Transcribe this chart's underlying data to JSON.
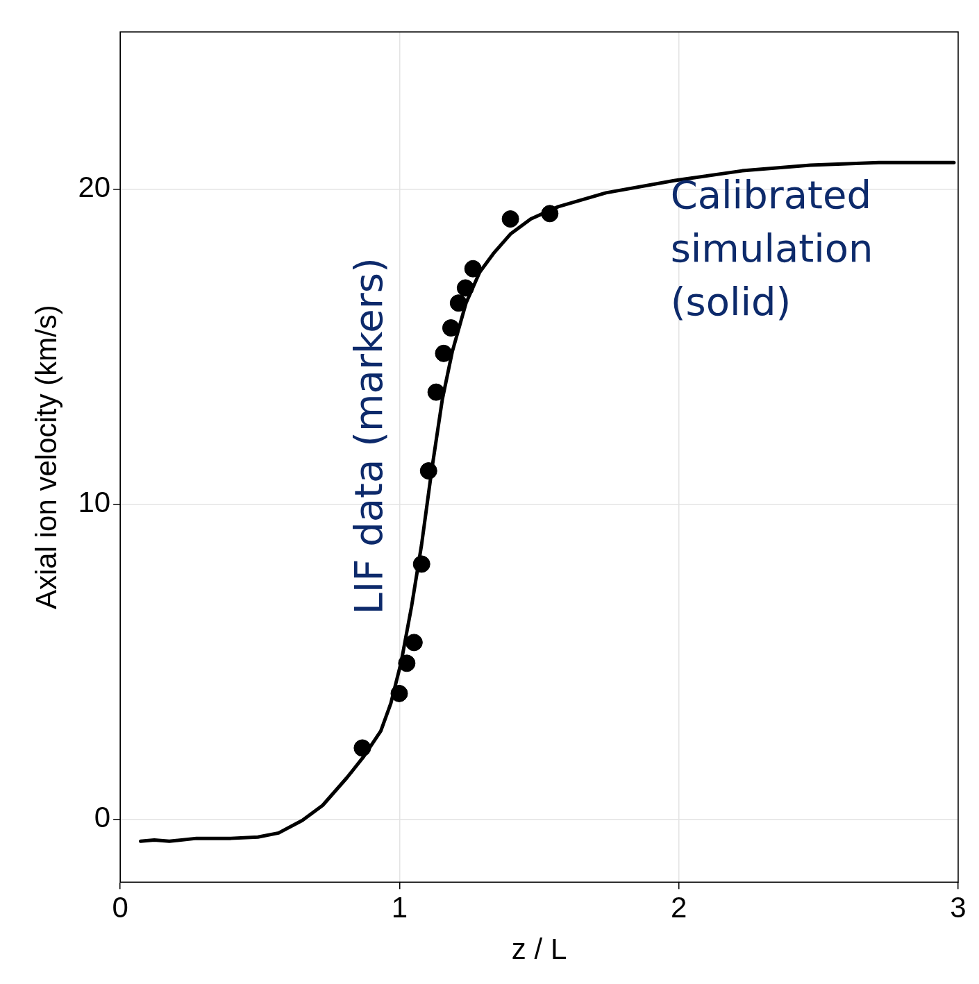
{
  "chart_data": {
    "type": "line",
    "xlabel": "z / L",
    "ylabel": "Axial ion velocity (km/s)",
    "xlim": [
      0,
      3
    ],
    "xticks": [
      0,
      1,
      2,
      3
    ],
    "ylim": [
      -2,
      25
    ],
    "yticks": [
      0,
      10,
      20
    ],
    "grid": true,
    "legend": false,
    "annotations": [
      "LIF data (markers)",
      "Calibrated simulation (solid)"
    ],
    "series": [
      {
        "type": "scatter",
        "color": "#000000",
        "marker": "circle",
        "x": [
          0.867,
          0.999,
          1.026,
          1.052,
          1.079,
          1.104,
          1.131,
          1.158,
          1.184,
          1.211,
          1.236,
          1.263,
          1.397,
          1.538
        ],
        "values": [
          2.26,
          3.99,
          4.95,
          5.61,
          8.1,
          11.06,
          13.56,
          14.79,
          15.6,
          16.39,
          16.87,
          17.48,
          19.06,
          19.23
        ]
      },
      {
        "color": "#000000",
        "marker": "none",
        "line_style": "solid",
        "x": [
          0.073,
          0.122,
          0.176,
          0.273,
          0.396,
          0.493,
          0.567,
          0.652,
          0.725,
          0.811,
          0.872,
          0.933,
          0.969,
          1.006,
          1.043,
          1.079,
          1.116,
          1.153,
          1.189,
          1.238,
          1.287,
          1.336,
          1.397,
          1.47,
          1.568,
          1.739,
          1.983,
          2.227,
          2.471,
          2.716,
          2.985
        ],
        "values": [
          -0.7,
          -0.66,
          -0.7,
          -0.61,
          -0.61,
          -0.57,
          -0.44,
          -0.04,
          0.44,
          1.31,
          1.99,
          2.8,
          3.68,
          4.99,
          6.75,
          8.72,
          11.13,
          13.32,
          14.85,
          16.39,
          17.37,
          17.96,
          18.58,
          19.06,
          19.45,
          19.89,
          20.28,
          20.59,
          20.77,
          20.85,
          20.85
        ]
      }
    ]
  }
}
